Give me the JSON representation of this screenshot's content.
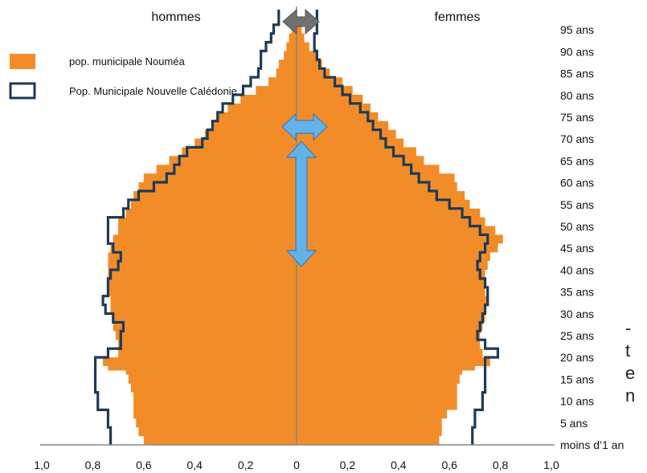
{
  "chart_data": {
    "type": "population-pyramid",
    "left_label": "hommes",
    "right_label": "femmes",
    "age_labels": [
      "moins d’1 an",
      "5 ans",
      "10 ans",
      "15 ans",
      "20 ans",
      "25 ans",
      "30 ans",
      "35 ans",
      "40 ans",
      "45 ans",
      "50 ans",
      "55 ans",
      "60 ans",
      "65 ans",
      "70 ans",
      "75 ans",
      "80 ans",
      "85 ans",
      "90 ans",
      "95 ans"
    ],
    "x_ticks": [
      "1,0",
      "0,8",
      "0,6",
      "0,4",
      "0,2",
      "0",
      "0,2",
      "0,4",
      "0,6",
      "0,8",
      "1,0"
    ],
    "xlim": [
      -1.0,
      1.0
    ],
    "legend": [
      {
        "label": "pop. municipale Nouméa",
        "style": "filled",
        "color": "#F28C28"
      },
      {
        "label": "Pop. Municipale Nouvelle Calédonie",
        "style": "outline",
        "color": "#1F3A56"
      }
    ],
    "series": [
      {
        "name": "pop. municipale Nouméa",
        "ages": [
          0,
          2,
          4,
          6,
          8,
          10,
          12,
          14,
          16,
          17,
          18,
          20,
          22,
          24,
          26,
          28,
          30,
          32,
          34,
          36,
          38,
          40,
          42,
          44,
          46,
          48,
          50,
          52,
          54,
          56,
          58,
          60,
          62,
          64,
          66,
          68,
          70,
          72,
          74,
          76,
          78,
          80,
          82,
          84,
          86,
          88,
          90,
          92,
          94,
          96
        ],
        "male": [
          0.6,
          0.62,
          0.63,
          0.64,
          0.64,
          0.64,
          0.65,
          0.66,
          0.67,
          0.74,
          0.76,
          0.7,
          0.7,
          0.71,
          0.72,
          0.72,
          0.73,
          0.73,
          0.74,
          0.74,
          0.74,
          0.74,
          0.74,
          0.73,
          0.72,
          0.7,
          0.7,
          0.67,
          0.65,
          0.64,
          0.62,
          0.6,
          0.55,
          0.5,
          0.45,
          0.4,
          0.36,
          0.33,
          0.31,
          0.27,
          0.22,
          0.16,
          0.11,
          0.08,
          0.07,
          0.05,
          0.04,
          0.03,
          0.02,
          0.01
        ],
        "female": [
          0.56,
          0.57,
          0.57,
          0.59,
          0.63,
          0.63,
          0.63,
          0.64,
          0.65,
          0.7,
          0.76,
          0.73,
          0.72,
          0.72,
          0.73,
          0.74,
          0.74,
          0.75,
          0.74,
          0.74,
          0.74,
          0.75,
          0.76,
          0.79,
          0.81,
          0.78,
          0.74,
          0.72,
          0.68,
          0.66,
          0.63,
          0.62,
          0.56,
          0.5,
          0.47,
          0.42,
          0.39,
          0.36,
          0.32,
          0.29,
          0.26,
          0.22,
          0.18,
          0.13,
          0.1,
          0.08,
          0.05,
          0.03,
          0.02,
          0.01
        ]
      },
      {
        "name": "Pop. Municipale Nouvelle Calédonie",
        "ages": [
          0,
          4,
          8,
          12,
          15,
          16,
          20,
          22,
          24,
          26,
          28,
          30,
          32,
          34,
          36,
          38,
          40,
          42,
          44,
          46,
          48,
          50,
          52,
          54,
          56,
          58,
          60,
          62,
          64,
          66,
          68,
          70,
          72,
          74,
          76,
          78,
          80,
          82,
          84,
          86,
          88,
          90,
          92,
          94,
          96,
          98
        ],
        "male": [
          0.73,
          0.74,
          0.78,
          0.79,
          0.79,
          0.79,
          0.74,
          0.69,
          0.69,
          0.68,
          0.72,
          0.75,
          0.76,
          0.74,
          0.74,
          0.73,
          0.7,
          0.69,
          0.72,
          0.74,
          0.74,
          0.74,
          0.68,
          0.66,
          0.62,
          0.56,
          0.51,
          0.48,
          0.46,
          0.43,
          0.37,
          0.35,
          0.33,
          0.31,
          0.29,
          0.25,
          0.21,
          0.18,
          0.15,
          0.14,
          0.14,
          0.12,
          0.1,
          0.09,
          0.07,
          0.07
        ],
        "female": [
          0.69,
          0.7,
          0.73,
          0.74,
          0.74,
          0.74,
          0.79,
          0.74,
          0.71,
          0.72,
          0.73,
          0.74,
          0.75,
          0.75,
          0.74,
          0.72,
          0.71,
          0.72,
          0.74,
          0.75,
          0.72,
          0.68,
          0.65,
          0.6,
          0.55,
          0.52,
          0.48,
          0.45,
          0.42,
          0.38,
          0.35,
          0.33,
          0.3,
          0.28,
          0.25,
          0.21,
          0.18,
          0.15,
          0.11,
          0.09,
          0.08,
          0.07,
          0.07,
          0.08,
          0.08,
          0.08
        ]
      }
    ]
  },
  "cut_text": [
    "-",
    "t",
    "e",
    "n"
  ],
  "colors": {
    "fill": "#F28C28",
    "outline": "#1F3A56",
    "arrow_blue": "#63B3E8",
    "arrow_grey": "#707070",
    "axis": "#888888"
  }
}
